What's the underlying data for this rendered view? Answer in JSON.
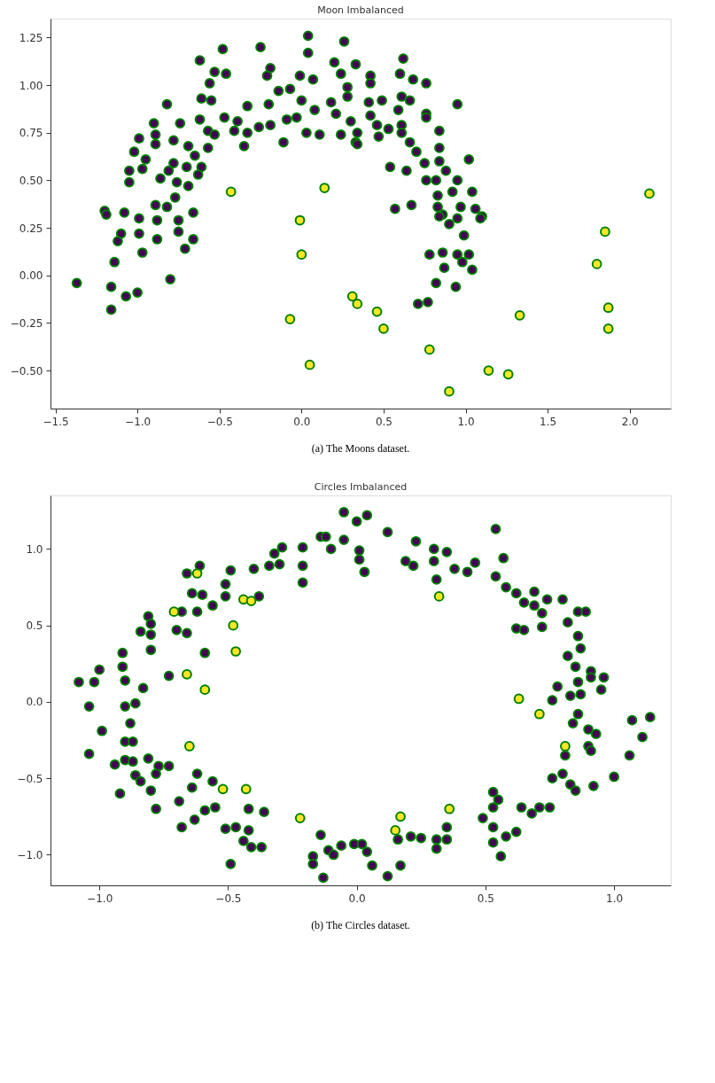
{
  "chart_data": [
    {
      "type": "scatter",
      "title": "Moon Imbalanced",
      "marker": "circle",
      "grid": false,
      "legend": false,
      "annotations": [
        "(a) The Moons dataset."
      ],
      "xlim": [
        -1.53,
        2.25
      ],
      "ylim": [
        -0.7,
        1.35
      ],
      "xticks": [
        {
          "value": -1.5,
          "label": "−1.5"
        },
        {
          "value": -1.0,
          "label": "−1.0"
        },
        {
          "value": -0.5,
          "label": "−0.5"
        },
        {
          "value": 0.0,
          "label": "0.0"
        },
        {
          "value": 0.5,
          "label": "0.5"
        },
        {
          "value": 1.0,
          "label": "1.0"
        },
        {
          "value": 1.5,
          "label": "1.5"
        },
        {
          "value": 2.0,
          "label": "2.0"
        }
      ],
      "yticks": [
        {
          "value": -0.5,
          "label": "−0.50"
        },
        {
          "value": -0.25,
          "label": "−0.25"
        },
        {
          "value": 0.0,
          "label": "0.00"
        },
        {
          "value": 0.25,
          "label": "0.25"
        },
        {
          "value": 0.5,
          "label": "0.50"
        },
        {
          "value": 0.75,
          "label": "0.75"
        },
        {
          "value": 1.0,
          "label": "1.00"
        },
        {
          "value": 1.25,
          "label": "1.25"
        }
      ],
      "series": [
        {
          "color": "#440154",
          "x": [
            0.04,
            0.26,
            -0.25,
            -0.48,
            0.04,
            -0.62,
            0.2,
            0.33,
            -0.53,
            -0.46,
            -0.19,
            -0.21,
            -0.01,
            0.07,
            0.24,
            -0.56,
            0.28,
            0.28,
            -0.61,
            -0.55,
            -0.82,
            -0.14,
            -0.07,
            0.0,
            0.18,
            -0.33,
            -0.2,
            0.08,
            0.21,
            0.3,
            -0.9,
            -0.74,
            -0.62,
            -0.47,
            -0.39,
            -0.09,
            -0.03,
            -0.19,
            -0.26,
            -0.57,
            -0.53,
            -0.41,
            -0.33,
            0.03,
            0.11,
            0.24,
            0.33,
            -0.99,
            -0.89,
            -0.78,
            -0.89,
            -0.35,
            -0.11,
            -0.69,
            -0.57,
            -1.02,
            -0.65,
            -0.95,
            -0.78,
            -0.61,
            -1.05,
            -0.97,
            -0.7,
            -0.81,
            -0.86,
            -0.63,
            -0.76,
            -1.05,
            -0.69,
            -0.77,
            -0.89,
            -0.82,
            -1.2,
            -1.08,
            -0.66,
            -0.99,
            -0.88,
            -0.75,
            -1.19,
            -1.1,
            -1.12,
            -0.99,
            -0.88,
            -0.75,
            -0.66,
            -0.97,
            -0.71,
            -1.14,
            -1.37,
            -1.16,
            -1.0,
            -1.07,
            -0.8,
            -1.16,
            0.62,
            0.6,
            0.68,
            0.76,
            0.42,
            0.42,
            0.41,
            0.49,
            0.61,
            0.66,
            0.59,
            0.95,
            0.76,
            0.76,
            0.42,
            0.46,
            0.53,
            0.61,
            0.34,
            0.47,
            0.61,
            0.34,
            0.84,
            0.66,
            0.84,
            0.7,
            1.02,
            0.54,
            0.64,
            0.75,
            0.84,
            0.88,
            0.76,
            0.82,
            0.95,
            0.92,
            1.04,
            0.83,
            0.57,
            0.67,
            0.83,
            0.97,
            1.06,
            1.1,
            0.86,
            0.95,
            0.84,
            1.09,
            0.9,
            0.99,
            0.78,
            0.86,
            0.95,
            1.02,
            0.98,
            0.87,
            1.04,
            0.82,
            0.94,
            0.71,
            0.77
          ],
          "values": [
            1.26,
            1.23,
            1.2,
            1.19,
            1.17,
            1.13,
            1.12,
            1.11,
            1.07,
            1.06,
            1.09,
            1.05,
            1.05,
            1.03,
            1.06,
            1.01,
            0.99,
            0.94,
            0.93,
            0.92,
            0.9,
            0.97,
            0.98,
            0.92,
            0.91,
            0.89,
            0.9,
            0.87,
            0.85,
            0.81,
            0.8,
            0.8,
            0.82,
            0.83,
            0.81,
            0.82,
            0.83,
            0.79,
            0.78,
            0.76,
            0.74,
            0.76,
            0.75,
            0.75,
            0.74,
            0.74,
            0.7,
            0.72,
            0.74,
            0.71,
            0.69,
            0.68,
            0.7,
            0.68,
            0.67,
            0.65,
            0.63,
            0.61,
            0.59,
            0.57,
            0.55,
            0.56,
            0.57,
            0.55,
            0.51,
            0.53,
            0.49,
            0.49,
            0.47,
            0.41,
            0.37,
            0.36,
            0.34,
            0.33,
            0.33,
            0.3,
            0.29,
            0.29,
            0.32,
            0.22,
            0.18,
            0.22,
            0.19,
            0.23,
            0.19,
            0.12,
            0.14,
            0.07,
            -0.04,
            -0.06,
            -0.09,
            -0.11,
            -0.02,
            -0.18,
            1.14,
            1.06,
            1.03,
            1.01,
            1.05,
            1.01,
            0.91,
            0.92,
            0.94,
            0.92,
            0.87,
            0.9,
            0.85,
            0.83,
            0.84,
            0.79,
            0.77,
            0.79,
            0.75,
            0.73,
            0.75,
            0.69,
            0.76,
            0.7,
            0.67,
            0.65,
            0.61,
            0.57,
            0.55,
            0.59,
            0.6,
            0.55,
            0.5,
            0.5,
            0.5,
            0.44,
            0.44,
            0.42,
            0.35,
            0.37,
            0.36,
            0.36,
            0.35,
            0.31,
            0.32,
            0.3,
            0.31,
            0.3,
            0.27,
            0.21,
            0.11,
            0.12,
            0.11,
            0.11,
            0.07,
            0.04,
            0.03,
            -0.04,
            -0.06,
            -0.15,
            -0.14
          ]
        },
        {
          "color": "#fde725",
          "x": [
            -0.43,
            0.14,
            -0.01,
            0.0,
            0.31,
            0.34,
            -0.07,
            0.05,
            0.46,
            0.5,
            0.78,
            0.9,
            1.14,
            1.26,
            1.33,
            1.8,
            1.85,
            1.87,
            1.87,
            2.12
          ],
          "values": [
            0.44,
            0.46,
            0.29,
            0.11,
            -0.11,
            -0.15,
            -0.23,
            -0.47,
            -0.19,
            -0.28,
            -0.39,
            -0.61,
            -0.5,
            -0.52,
            -0.21,
            0.06,
            0.23,
            -0.17,
            -0.28,
            0.43
          ]
        }
      ]
    },
    {
      "type": "scatter",
      "title": "Circles Imbalanced",
      "marker": "circle",
      "grid": false,
      "legend": false,
      "annotations": [
        "(b) The Circles dataset."
      ],
      "xlim": [
        -1.19,
        1.22
      ],
      "ylim": [
        -1.2,
        1.35
      ],
      "xticks": [
        {
          "value": -1.0,
          "label": "−1.0"
        },
        {
          "value": -0.5,
          "label": "−0.5"
        },
        {
          "value": 0.0,
          "label": "0.0"
        },
        {
          "value": 0.5,
          "label": "0.5"
        },
        {
          "value": 1.0,
          "label": "1.0"
        }
      ],
      "yticks": [
        {
          "value": -1.0,
          "label": "−1.0"
        },
        {
          "value": -0.5,
          "label": "−0.5"
        },
        {
          "value": 0.0,
          "label": "0.0"
        },
        {
          "value": 0.5,
          "label": "0.5"
        },
        {
          "value": 1.0,
          "label": "1.0"
        }
      ],
      "series": [
        {
          "color": "#440154",
          "x": [
            -0.05,
            0.0,
            -0.14,
            -0.12,
            -0.05,
            -0.1,
            0.01,
            0.01,
            -0.21,
            -0.29,
            -0.32,
            -0.3,
            -0.34,
            -0.4,
            -0.21,
            -0.21,
            -0.49,
            -0.61,
            -0.66,
            -0.51,
            -0.64,
            -0.6,
            -0.51,
            -0.38,
            -0.56,
            -0.62,
            -0.68,
            -0.81,
            -0.8,
            -0.84,
            -0.8,
            -0.7,
            -0.66,
            -0.8,
            -0.91,
            -0.59,
            -0.91,
            -1.0,
            -0.9,
            -1.02,
            -1.08,
            -0.73,
            -0.83,
            -0.86,
            -0.9,
            -1.04,
            -0.88,
            -0.99,
            -0.9,
            -0.87,
            -1.04,
            -0.94,
            -0.9,
            -0.87,
            -0.81,
            -0.77,
            -0.73,
            -0.78,
            -0.86,
            -0.84,
            -0.8,
            -0.92,
            -0.62,
            -0.56,
            -0.64,
            -0.69,
            -0.78,
            -0.42,
            -0.36,
            -0.55,
            -0.59,
            -0.63,
            -0.68,
            -0.51,
            -0.47,
            -0.42,
            -0.44,
            -0.41,
            -0.37,
            -0.49,
            -0.14,
            -0.17,
            -0.17,
            -0.11,
            -0.09,
            -0.13,
            -0.06,
            -0.01,
            0.04,
            0.12,
            0.54,
            0.23,
            0.3,
            0.35,
            0.19,
            0.22,
            0.3,
            0.03,
            0.38,
            0.43,
            0.46,
            0.57,
            0.31,
            0.54,
            0.58,
            0.62,
            0.69,
            0.74,
            0.8,
            0.65,
            0.69,
            0.72,
            0.86,
            0.89,
            0.62,
            0.65,
            0.72,
            0.82,
            0.86,
            0.87,
            0.82,
            0.85,
            0.91,
            0.96,
            0.91,
            0.86,
            0.78,
            0.95,
            0.83,
            0.87,
            0.76,
            0.86,
            0.84,
            0.9,
            0.93,
            1.07,
            1.14,
            1.11,
            0.9,
            0.91,
            0.81,
            1.06,
            1.0,
            0.76,
            0.8,
            0.83,
            0.85,
            0.92,
            0.53,
            0.55,
            0.53,
            0.49,
            0.53,
            0.58,
            0.53,
            0.56,
            0.62,
            0.64,
            0.68,
            0.71,
            0.75,
            0.35,
            0.35,
            0.31,
            0.31,
            0.25,
            0.21,
            0.16,
            0.02,
            0.04,
            0.06,
            0.12,
            0.17
          ],
          "values": [
            1.24,
            1.18,
            1.08,
            1.08,
            1.06,
            1.0,
            0.99,
            0.93,
            1.01,
            1.01,
            0.97,
            0.9,
            0.89,
            0.87,
            0.89,
            0.78,
            0.86,
            0.89,
            0.84,
            0.77,
            0.71,
            0.7,
            0.69,
            0.69,
            0.63,
            0.59,
            0.59,
            0.56,
            0.51,
            0.46,
            0.44,
            0.47,
            0.45,
            0.34,
            0.32,
            0.32,
            0.23,
            0.21,
            0.14,
            0.13,
            0.13,
            0.17,
            0.09,
            -0.01,
            -0.03,
            -0.03,
            -0.14,
            -0.19,
            -0.26,
            -0.26,
            -0.34,
            -0.41,
            -0.38,
            -0.39,
            -0.37,
            -0.42,
            -0.42,
            -0.47,
            -0.48,
            -0.52,
            -0.58,
            -0.6,
            -0.47,
            -0.52,
            -0.56,
            -0.65,
            -0.7,
            -0.7,
            -0.72,
            -0.69,
            -0.71,
            -0.77,
            -0.82,
            -0.83,
            -0.82,
            -0.84,
            -0.91,
            -0.95,
            -0.95,
            -1.06,
            -0.87,
            -1.01,
            -1.06,
            -0.97,
            -1.0,
            -1.15,
            -0.94,
            -0.93,
            1.22,
            1.11,
            1.13,
            1.05,
            1.0,
            0.98,
            0.92,
            0.89,
            0.92,
            0.85,
            0.87,
            0.85,
            0.91,
            0.94,
            0.8,
            0.82,
            0.75,
            0.71,
            0.72,
            0.67,
            0.67,
            0.65,
            0.63,
            0.58,
            0.59,
            0.59,
            0.48,
            0.47,
            0.49,
            0.52,
            0.43,
            0.35,
            0.3,
            0.23,
            0.2,
            0.16,
            0.16,
            0.13,
            0.1,
            0.08,
            0.04,
            0.05,
            0.01,
            -0.08,
            -0.14,
            -0.18,
            -0.21,
            -0.12,
            -0.1,
            -0.23,
            -0.29,
            -0.32,
            -0.35,
            -0.35,
            -0.49,
            -0.5,
            -0.47,
            -0.54,
            -0.58,
            -0.55,
            -0.59,
            -0.64,
            -0.69,
            -0.76,
            -0.82,
            -0.88,
            -0.92,
            -1.01,
            -0.85,
            -0.69,
            -0.73,
            -0.69,
            -0.69,
            -0.82,
            -0.9,
            -0.9,
            -0.96,
            -0.89,
            -0.88,
            -0.9,
            -0.93,
            -0.98,
            -1.07,
            -1.14,
            -1.07
          ]
        },
        {
          "color": "#fde725",
          "x": [
            -0.62,
            -0.71,
            -0.44,
            -0.41,
            -0.48,
            -0.47,
            -0.66,
            -0.59,
            -0.65,
            -0.52,
            -0.43,
            -0.22,
            0.32,
            0.63,
            0.71,
            0.81,
            0.36,
            0.17,
            0.15
          ],
          "values": [
            0.84,
            0.59,
            0.67,
            0.66,
            0.5,
            0.33,
            0.18,
            0.08,
            -0.29,
            -0.57,
            -0.57,
            -0.76,
            0.69,
            0.02,
            -0.08,
            -0.29,
            -0.7,
            -0.75,
            -0.84
          ]
        }
      ]
    }
  ]
}
